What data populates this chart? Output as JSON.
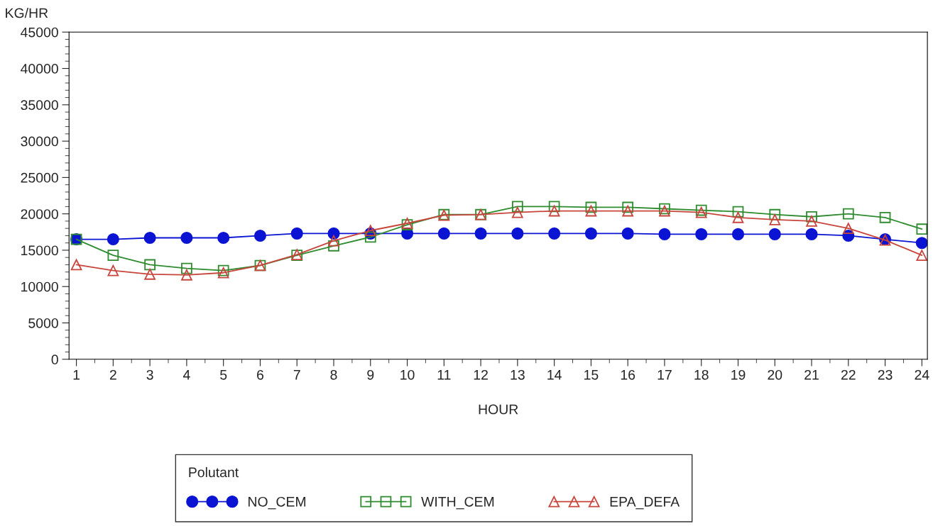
{
  "chart_data": {
    "type": "line",
    "xlabel": "HOUR",
    "ylabel": "KG/HR",
    "legend_title": "Polutant",
    "legend": "bottom",
    "grid": false,
    "x": [
      1,
      2,
      3,
      4,
      5,
      6,
      7,
      8,
      9,
      10,
      11,
      12,
      13,
      14,
      15,
      16,
      17,
      18,
      19,
      20,
      21,
      22,
      23,
      24
    ],
    "xlim": [
      0.8,
      24.15
    ],
    "xticks": [
      1,
      2,
      3,
      4,
      5,
      6,
      7,
      8,
      9,
      10,
      11,
      12,
      13,
      14,
      15,
      16,
      17,
      18,
      19,
      20,
      21,
      22,
      23,
      24
    ],
    "ylim": [
      0,
      45000
    ],
    "yticks": [
      0,
      5000,
      10000,
      15000,
      20000,
      25000,
      30000,
      35000,
      40000,
      45000
    ],
    "series": [
      {
        "name": "NO_CEM",
        "color": "#0a14d2",
        "marker": "circle",
        "values": [
          16500,
          16500,
          16700,
          16700,
          16700,
          17000,
          17300,
          17300,
          17300,
          17300,
          17300,
          17300,
          17300,
          17300,
          17300,
          17300,
          17200,
          17200,
          17200,
          17200,
          17200,
          17000,
          16500,
          16000
        ]
      },
      {
        "name": "WITH_CEM",
        "color": "#2e8b2e",
        "marker": "square",
        "values": [
          16500,
          14300,
          13000,
          12500,
          12200,
          12900,
          14300,
          15600,
          16800,
          18500,
          19900,
          19900,
          21000,
          21000,
          20900,
          20900,
          20700,
          20500,
          20300,
          19900,
          19600,
          20000,
          19500,
          17900
        ]
      },
      {
        "name": "EPA_DEFA",
        "color": "#c8453c",
        "marker": "triangle",
        "values": [
          13000,
          12200,
          11700,
          11600,
          11900,
          12900,
          14400,
          16300,
          17700,
          18700,
          19800,
          19900,
          20200,
          20400,
          20400,
          20400,
          20400,
          20200,
          19500,
          19200,
          19000,
          18000,
          16400,
          14300
        ]
      }
    ]
  }
}
